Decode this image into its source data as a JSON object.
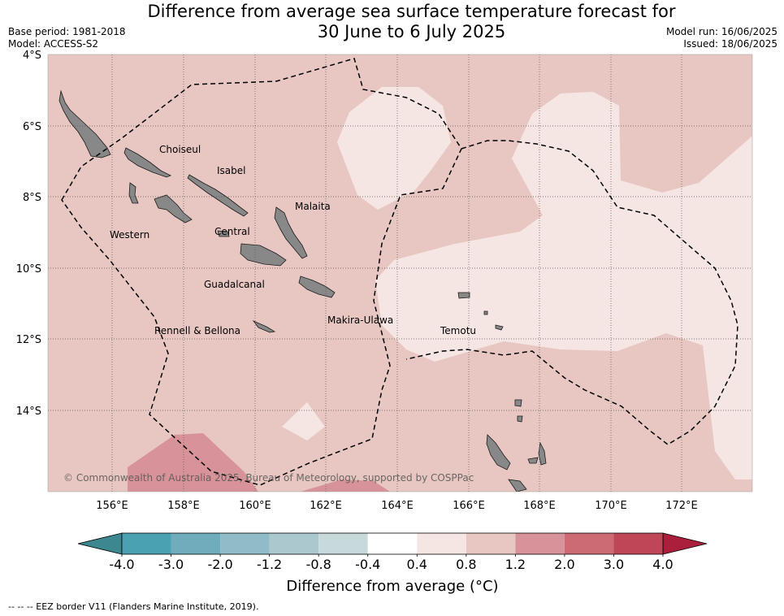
{
  "title_line1": "Difference from average sea surface temperature forecast for",
  "title_line2": "30 June to 6 July 2025",
  "base_period": "Base period: 1981-2018",
  "model": "Model: ACCESS-S2",
  "model_run": "Model run: 16/06/2025",
  "issued": "Issued: 18/06/2025",
  "copyright": "© Commonwealth of Australia 2025, Bureau of Meteorology, supported by COSPPac",
  "lat_labels": [
    "4°S",
    "6°S",
    "8°S",
    "10°S",
    "12°S",
    "14°S"
  ],
  "lon_labels": [
    "156°E",
    "158°E",
    "160°E",
    "162°E",
    "164°E",
    "166°E",
    "168°E",
    "170°E",
    "172°E"
  ],
  "places": {
    "choiseul": "Choiseul",
    "isabel": "Isabel",
    "malaita": "Malaita",
    "western": "Western",
    "central": "Central",
    "guadalcanal": "Guadalcanal",
    "makira": "Makira-Ulawa",
    "rennell": "Rennell & Bellona",
    "temotu": "Temotu"
  },
  "colorbar": {
    "ticks": [
      "-4.0",
      "-3.0",
      "-2.0",
      "-1.2",
      "-0.8",
      "-0.4",
      "0.4",
      "0.8",
      "1.2",
      "2.0",
      "3.0",
      "4.0"
    ],
    "colors": [
      "#4aa1b0",
      "#6fadbd",
      "#8fbcc6",
      "#aac8cd",
      "#c8d9dc",
      "#ffffff",
      "#f5e6e4",
      "#e8c7c2",
      "#d8939a",
      "#cc6b74",
      "#be4656"
    ],
    "low_extend_color": "#3d8890",
    "high_extend_color": "#ab1f3c",
    "label": "Difference from average (°C)"
  },
  "eez_note": "--  --  -- EEZ border V11 (Flanders Marine Institute, 2019).",
  "map_colors": {
    "ocean_base": "#e8c7c2",
    "warm_weak": "#f5e6e4",
    "warm_strong": "#d8939a",
    "land": "#888888"
  }
}
